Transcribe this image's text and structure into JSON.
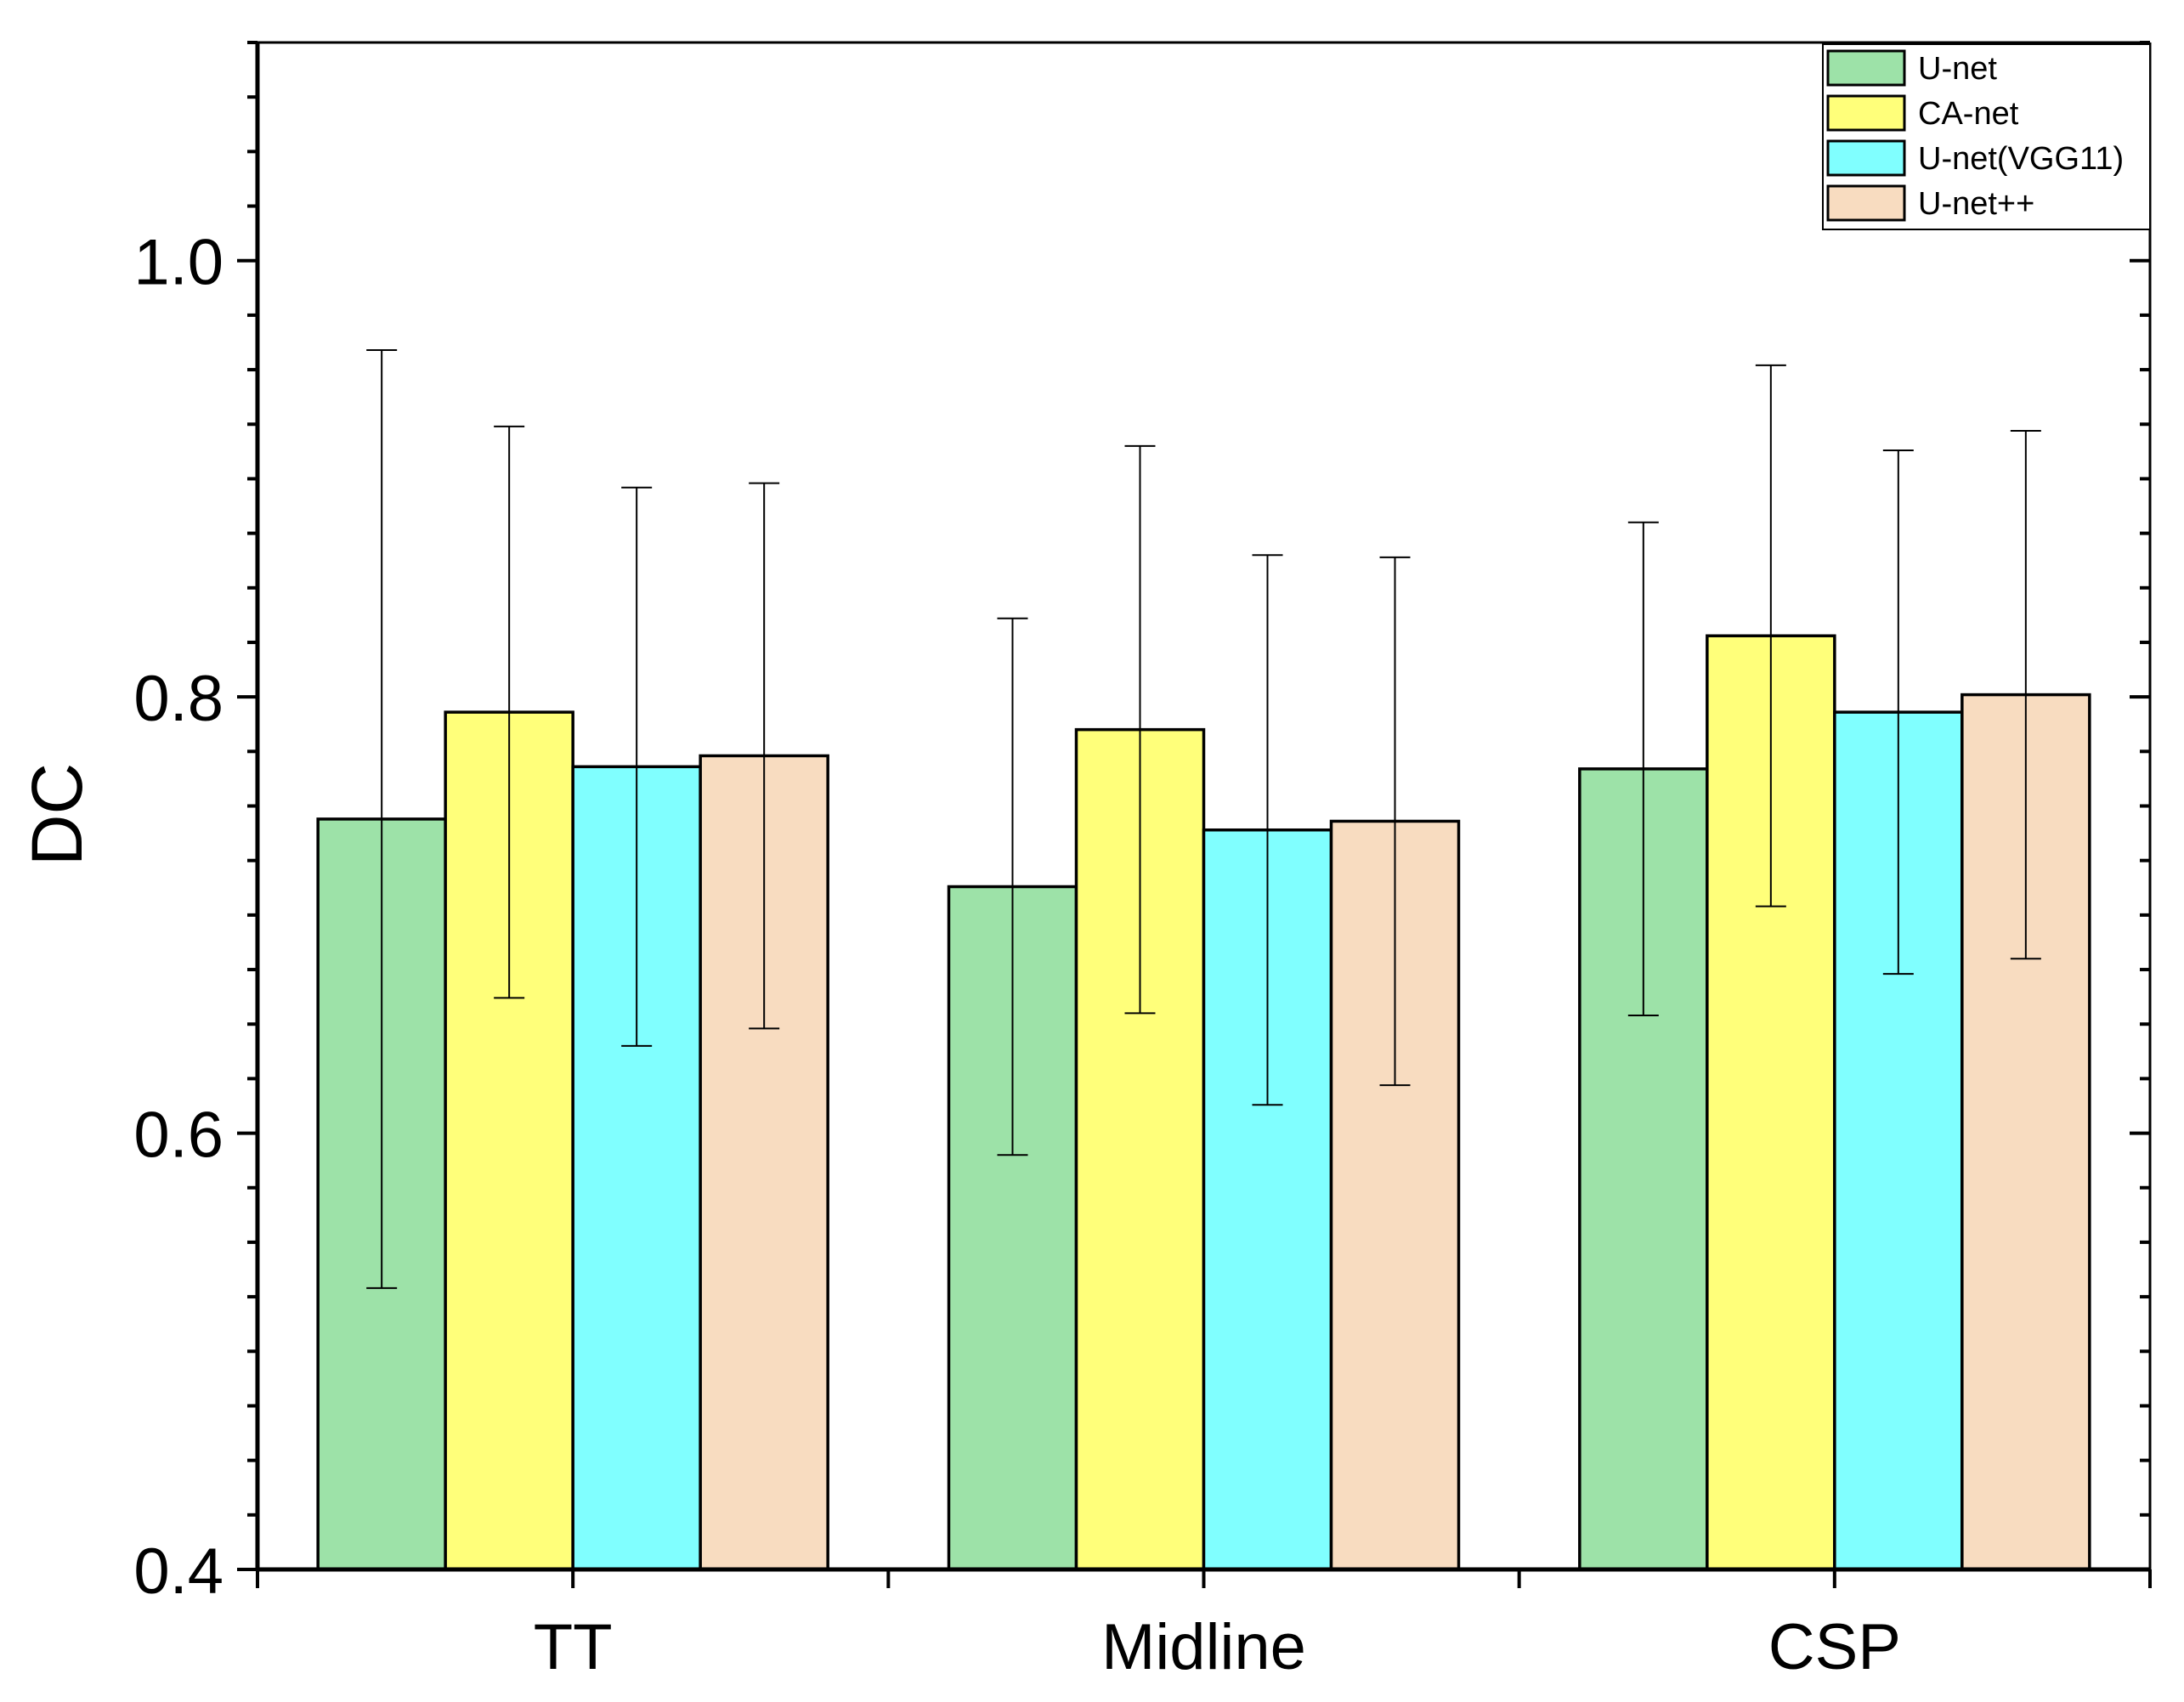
{
  "chart_data": {
    "type": "bar",
    "title": "",
    "xlabel": "",
    "ylabel": "DC",
    "ylim": [
      0.4,
      1.1
    ],
    "yticks": [
      {
        "value": 0.4,
        "label": "0.4"
      },
      {
        "value": 0.6,
        "label": "0.6"
      },
      {
        "value": 0.8,
        "label": "0.8"
      },
      {
        "value": 1.0,
        "label": "1.0"
      }
    ],
    "y_minor_step": 0.025,
    "categories": [
      "TT",
      "Midline",
      "CSP"
    ],
    "legend_position": "top-right",
    "series": [
      {
        "name": "U-net",
        "color": "#9de2a8",
        "values": [
          0.744,
          0.713,
          0.767
        ],
        "error": [
          0.215,
          0.123,
          0.113
        ]
      },
      {
        "name": "CA-net",
        "color": "#ffff7a",
        "values": [
          0.793,
          0.785,
          0.828
        ],
        "error": [
          0.131,
          0.13,
          0.124
        ]
      },
      {
        "name": "U-net(VGG11)",
        "color": "#80ffff",
        "values": [
          0.768,
          0.739,
          0.793
        ],
        "error": [
          0.128,
          0.126,
          0.12
        ]
      },
      {
        "name": "U-net++",
        "color": "#f8dcc0",
        "values": [
          0.773,
          0.743,
          0.801
        ],
        "error": [
          0.125,
          0.121,
          0.121
        ]
      }
    ]
  }
}
